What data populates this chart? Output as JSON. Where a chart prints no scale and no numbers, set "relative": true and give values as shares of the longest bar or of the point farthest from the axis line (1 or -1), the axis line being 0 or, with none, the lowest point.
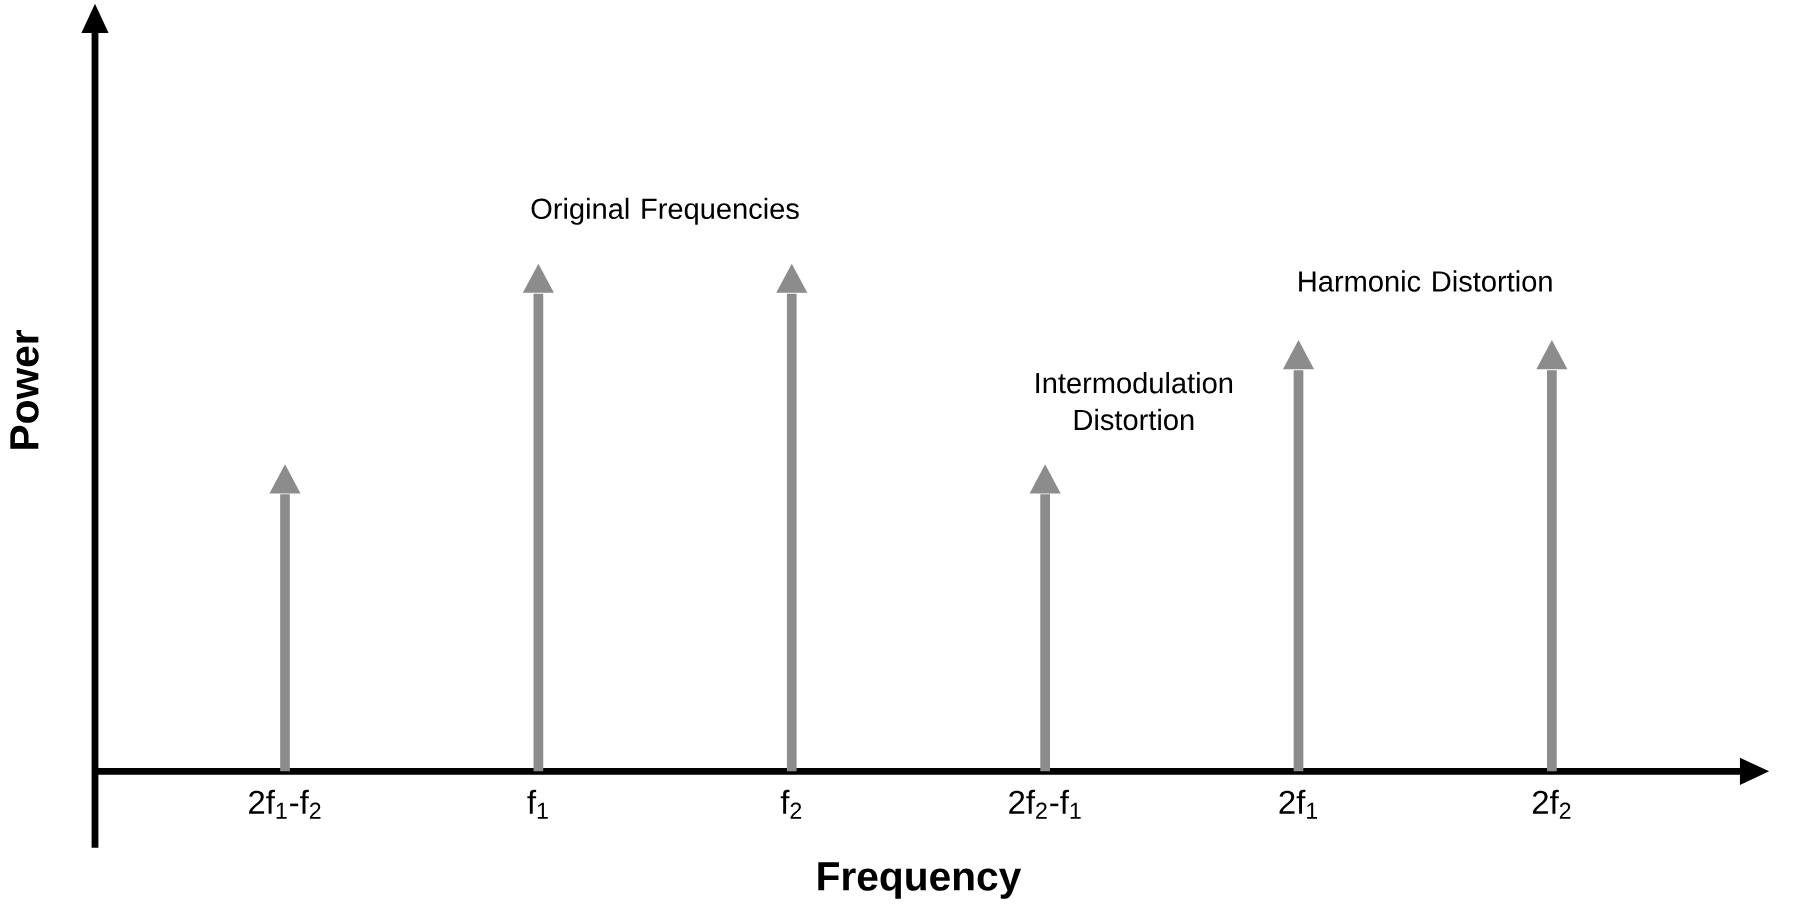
{
  "chart_data": {
    "type": "bar",
    "relative": true,
    "xlabel": "Frequency",
    "ylabel": "Power",
    "color": "#8c8c8c",
    "categories": [
      "2f$_{1}$-f$_{2}$",
      "f$_{1}$",
      "f$_{2}$",
      "2f$_{2}$-f$_{1}$",
      "2f$_{1}$",
      "2f$_{2}$"
    ],
    "values": [
      0.58,
      1,
      1,
      0.58,
      0.84,
      0.84
    ],
    "annotations": [
      "Original Frequencies",
      "Intermodulation Distortion",
      "Harmonic Distortion"
    ]
  }
}
